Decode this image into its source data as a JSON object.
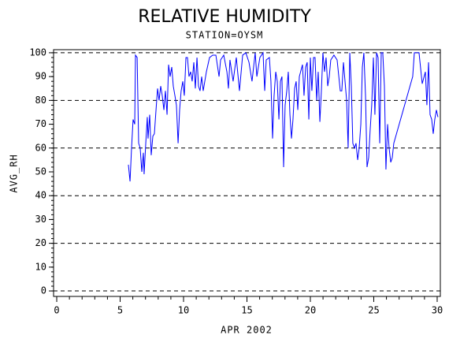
{
  "chart_data": {
    "type": "line",
    "title": "RELATIVE HUMIDITY",
    "subtitle": "STATION=OYSM",
    "xlabel": "APR 2002",
    "ylabel": "AVG_RH",
    "x": [
      5.65,
      5.78,
      5.9,
      6.02,
      6.15,
      6.21,
      6.34,
      6.46,
      6.58,
      6.71,
      6.83,
      6.89,
      7.02,
      7.14,
      7.2,
      7.33,
      7.45,
      7.58,
      7.7,
      7.83,
      7.95,
      8.07,
      8.2,
      8.32,
      8.45,
      8.57,
      8.7,
      8.82,
      8.94,
      9.07,
      9.19,
      9.32,
      9.44,
      9.57,
      9.69,
      9.81,
      9.94,
      10.06,
      10.19,
      10.31,
      10.43,
      10.56,
      10.68,
      10.81,
      10.93,
      11.06,
      11.18,
      11.3,
      11.43,
      11.55,
      11.8,
      12.05,
      12.3,
      12.55,
      12.8,
      12.92,
      13.17,
      13.42,
      13.54,
      13.66,
      13.91,
      14.16,
      14.41,
      14.66,
      14.91,
      15.16,
      15.4,
      15.65,
      15.78,
      16.02,
      16.27,
      16.4,
      16.52,
      16.77,
      16.89,
      17.02,
      17.14,
      17.27,
      17.39,
      17.52,
      17.64,
      17.76,
      17.89,
      18.01,
      18.14,
      18.26,
      18.39,
      18.51,
      18.63,
      18.76,
      18.88,
      19.01,
      19.13,
      19.38,
      19.5,
      19.63,
      19.75,
      19.88,
      20.0,
      20.12,
      20.25,
      20.37,
      20.5,
      20.62,
      20.75,
      20.87,
      20.99,
      21.12,
      21.24,
      21.37,
      21.49,
      21.61,
      21.86,
      22.11,
      22.36,
      22.48,
      22.61,
      22.86,
      22.98,
      23.11,
      23.23,
      23.35,
      23.48,
      23.6,
      23.73,
      23.85,
      23.98,
      24.1,
      24.22,
      24.35,
      24.47,
      24.6,
      24.72,
      24.84,
      24.97,
      25.09,
      25.22,
      25.34,
      25.47,
      25.59,
      25.71,
      25.84,
      25.96,
      26.09,
      26.21,
      26.34,
      26.46,
      26.58,
      28.07,
      28.2,
      28.57,
      28.82,
      29.07,
      29.19,
      29.32,
      29.44,
      29.57,
      29.69,
      29.81,
      29.94,
      30.06
    ],
    "series": [
      {
        "name": "AVG_RH",
        "color": "#0000ff",
        "values": [
          53,
          46,
          60,
          72,
          70,
          99,
          98,
          62,
          60,
          50,
          58,
          49,
          62,
          73,
          64,
          74,
          57,
          65,
          66,
          76,
          85,
          80,
          86,
          82,
          76,
          84,
          74,
          95,
          90,
          94,
          86,
          82,
          78,
          62,
          76,
          84,
          88,
          82,
          98,
          98,
          90,
          92,
          88,
          96,
          85,
          98,
          86,
          84,
          90,
          84,
          92,
          98,
          99,
          99,
          90,
          97,
          99,
          92,
          85,
          97,
          88,
          98,
          84,
          99,
          100,
          96,
          88,
          100,
          90,
          98,
          100,
          84,
          97,
          98,
          88,
          64,
          82,
          92,
          88,
          72,
          88,
          90,
          52,
          78,
          84,
          92,
          74,
          64,
          72,
          85,
          88,
          76,
          90,
          95,
          82,
          94,
          96,
          72,
          98,
          84,
          98,
          98,
          80,
          92,
          71,
          84,
          100,
          92,
          98,
          86,
          90,
          97,
          99,
          97,
          84,
          84,
          96,
          80,
          60,
          100,
          86,
          62,
          60,
          62,
          55,
          60,
          70,
          94,
          100,
          82,
          52,
          56,
          68,
          78,
          98,
          74,
          100,
          98,
          62,
          100,
          100,
          86,
          51,
          70,
          60,
          54,
          56,
          62,
          90,
          100,
          100,
          87,
          92,
          78,
          96,
          74,
          72,
          66,
          72,
          76,
          73
        ]
      }
    ],
    "xlim": [
      -0.25,
      30.25
    ],
    "xticks": [
      0,
      5,
      10,
      15,
      20,
      25,
      30
    ],
    "xminor": 1,
    "ylim": [
      -2.3,
      101.3
    ],
    "yticks": [
      0,
      10,
      20,
      30,
      40,
      50,
      60,
      70,
      80,
      90,
      100
    ],
    "yminor": 2,
    "ygrid": [
      0,
      20,
      40,
      60,
      80,
      100
    ]
  }
}
